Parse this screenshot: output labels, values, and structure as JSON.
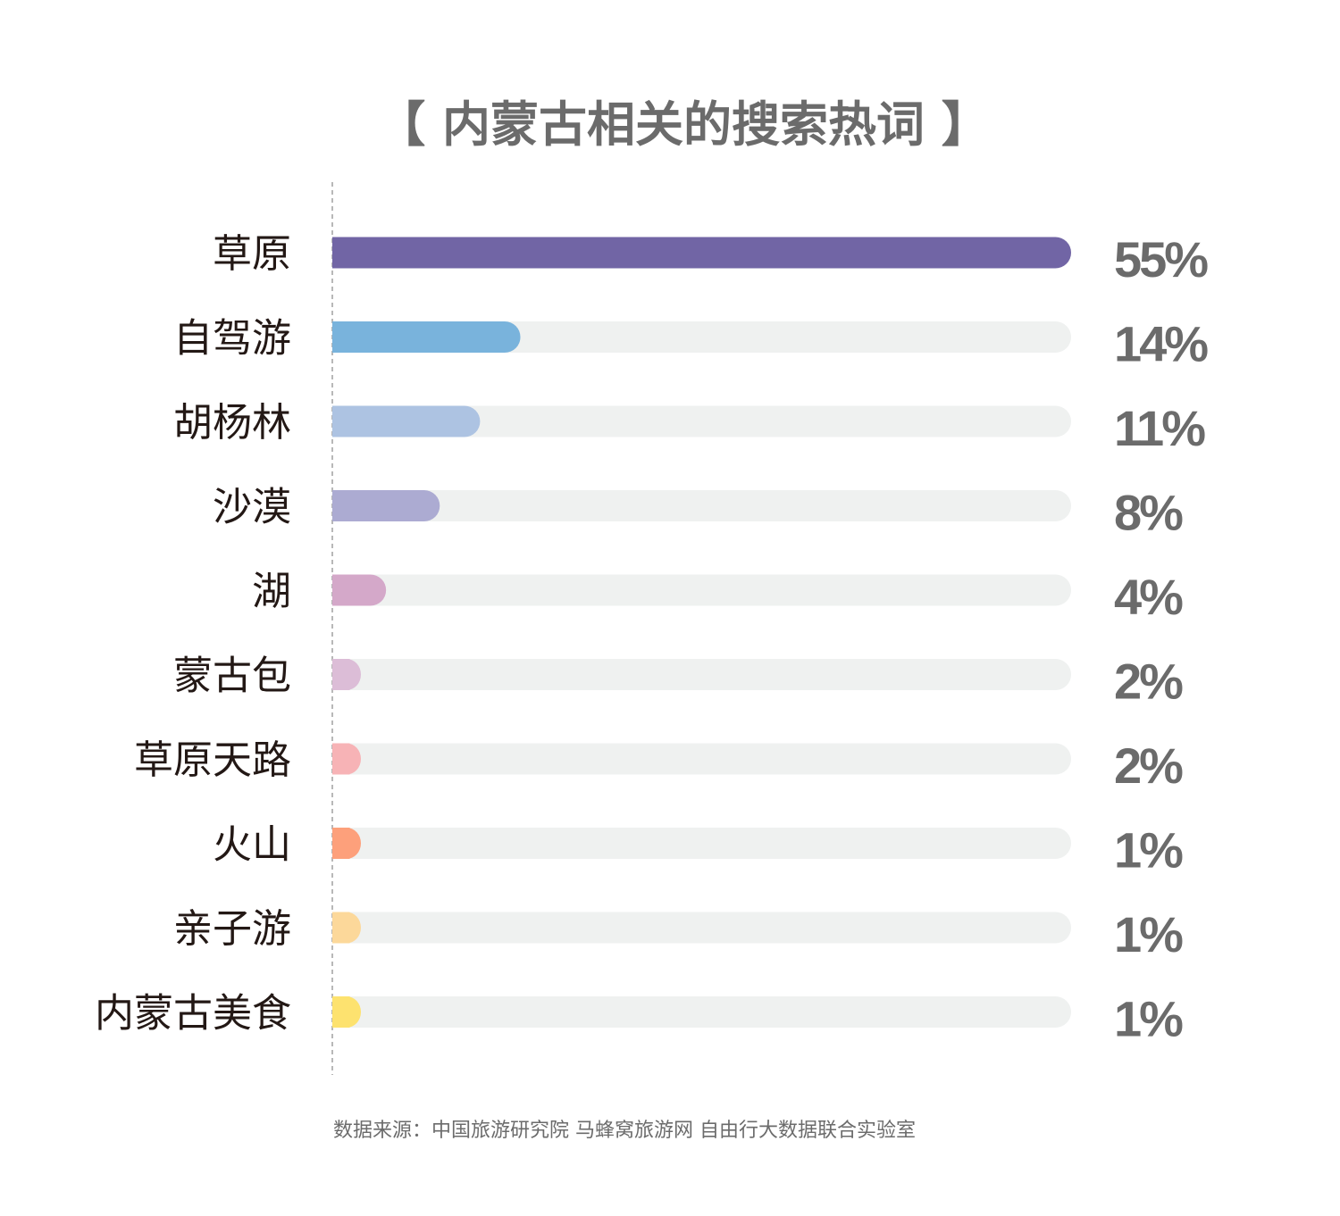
{
  "chart_data": {
    "type": "bar",
    "orientation": "horizontal",
    "title": "【 内蒙古相关的搜索热词 】",
    "categories": [
      "草原",
      "自驾游",
      "胡杨林",
      "沙漠",
      "湖",
      "蒙古包",
      "草原天路",
      "火山",
      "亲子游",
      "内蒙古美食"
    ],
    "values": [
      55,
      14,
      11,
      8,
      4,
      2,
      2,
      1,
      1,
      1
    ],
    "value_labels": [
      "55%",
      "14%",
      "11%",
      "8%",
      "4%",
      "2%",
      "2%",
      "1%",
      "1%",
      "1%"
    ],
    "bar_colors": [
      "#7165a5",
      "#79b3dc",
      "#adc3e2",
      "#acabd2",
      "#d4a8c9",
      "#dcbdd7",
      "#f7b3b6",
      "#fda07b",
      "#fcd89a",
      "#fde26f"
    ],
    "track_color": "#eff1f0",
    "xlabel": "",
    "ylabel": "",
    "grid": false,
    "source": "数据来源：中国旅游研究院 马蜂窝旅游网 自由行大数据联合实验室"
  }
}
